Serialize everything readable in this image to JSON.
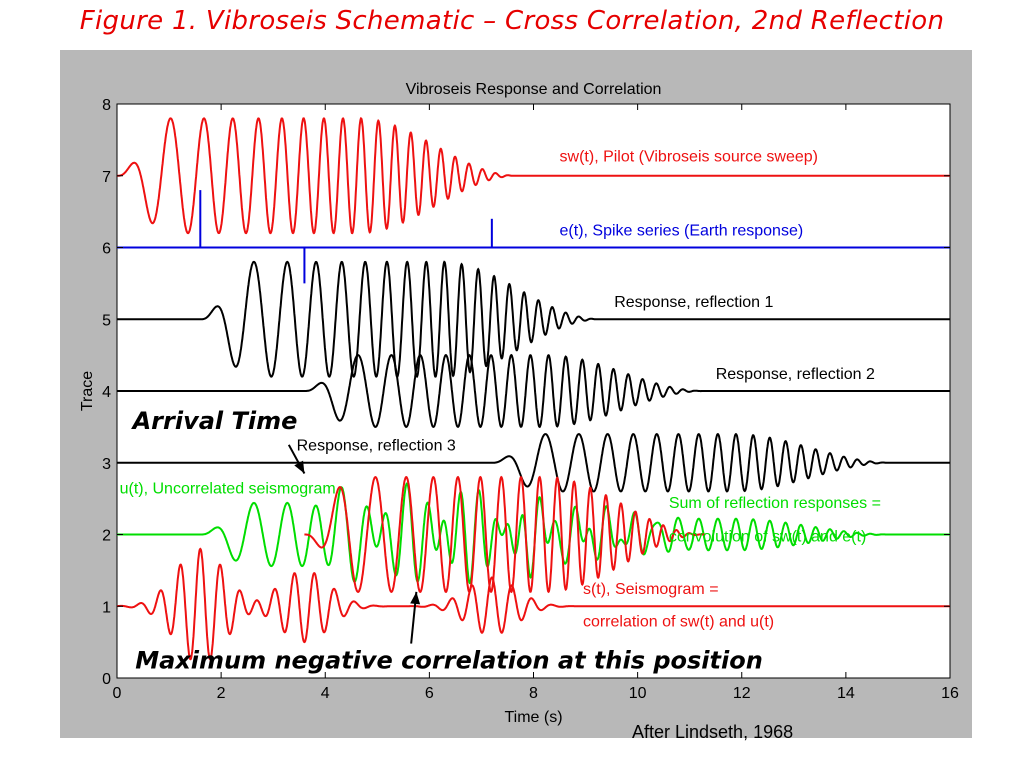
{
  "figure_title": "Figure 1.  Vibroseis Schematic – Cross Correlation, 2nd Reflection",
  "credit": "After Lindseth, 1968",
  "chart_data": {
    "type": "line",
    "title": "Vibroseis Response and Correlation",
    "xlabel": "Time (s)",
    "ylabel": "Trace",
    "xlim": [
      0,
      16
    ],
    "ylim": [
      0,
      8
    ],
    "xticks": [
      0,
      2,
      4,
      6,
      8,
      10,
      12,
      14,
      16
    ],
    "yticks": [
      0,
      1,
      2,
      3,
      4,
      5,
      6,
      7,
      8
    ],
    "grid": false,
    "colors": {
      "red": "#ee1111",
      "blue": "#0000dd",
      "black": "#000000",
      "green": "#00dd00"
    },
    "series": [
      {
        "name": "sw(t), Pilot (Vibroseis source sweep)",
        "baseline": 7,
        "color": "red",
        "kind": "sweep",
        "start": 0,
        "end": 7.7,
        "amplitude": 0.8,
        "cycles": 20
      },
      {
        "name": "e(t), Spike series (Earth response)",
        "baseline": 6,
        "color": "blue",
        "kind": "spikes",
        "spikes": [
          {
            "t": 1.6,
            "a": 0.8
          },
          {
            "t": 3.6,
            "a": -0.5
          },
          {
            "t": 7.2,
            "a": 0.4
          }
        ]
      },
      {
        "name": "Response, reflection 1",
        "baseline": 5,
        "color": "black",
        "kind": "sweep",
        "start": 1.6,
        "end": 9.3,
        "amplitude": 0.8,
        "cycles": 20
      },
      {
        "name": "Response, reflection 2",
        "baseline": 4,
        "color": "black",
        "kind": "sweep",
        "start": 3.6,
        "end": 11.3,
        "amplitude": 0.5,
        "cycles": 20
      },
      {
        "name": "Response, reflection 3",
        "baseline": 3,
        "color": "black",
        "kind": "sweep",
        "start": 7.2,
        "end": 14.9,
        "amplitude": 0.4,
        "cycles": 20
      },
      {
        "name": "u(t), Uncorrelated seismogram",
        "baseline": 2,
        "color": "green",
        "kind": "sum",
        "components": [
          {
            "start": 1.6,
            "amplitude": 0.8
          },
          {
            "start": 3.6,
            "amplitude": -0.5
          },
          {
            "start": 7.2,
            "amplitude": 0.4
          }
        ]
      },
      {
        "name": "s(t), Seismogram",
        "baseline": 1,
        "color": "red",
        "kind": "correlation",
        "peaks": [
          {
            "t": 1.6,
            "a": 0.8
          },
          {
            "t": 3.6,
            "a": -0.5
          },
          {
            "t": 7.2,
            "a": 0.4
          }
        ]
      },
      {
        "name": "",
        "baseline": 2,
        "color": "red",
        "kind": "sweep",
        "start": 3.6,
        "end": 11.3,
        "amplitude": 0.8,
        "cycles": 20,
        "inverted": true
      }
    ],
    "labels": [
      {
        "text": "sw(t), Pilot (Vibroseis source sweep)",
        "x": 8.5,
        "y": 7.2,
        "color": "red"
      },
      {
        "text": "e(t), Spike series (Earth response)",
        "x": 8.5,
        "y": 6.17,
        "color": "blue"
      },
      {
        "text": "Response, reflection 1",
        "x": 9.55,
        "y": 5.17,
        "color": "black"
      },
      {
        "text": "Response, reflection 2",
        "x": 11.5,
        "y": 4.17,
        "color": "black"
      },
      {
        "text": "Response, reflection 3",
        "x": 3.45,
        "y": 3.17,
        "color": "black"
      },
      {
        "text": "u(t), Uncorrelated seismogram",
        "x": 0.05,
        "y": 2.57,
        "color": "green"
      },
      {
        "text": "Sum of reflection responses =",
        "x": 10.6,
        "y": 2.37,
        "color": "green"
      },
      {
        "text": "convolution of sw(t) and e(t)",
        "x": 10.6,
        "y": 1.9,
        "color": "green"
      },
      {
        "text": "s(t), Seismogram =",
        "x": 8.95,
        "y": 1.17,
        "color": "red"
      },
      {
        "text": "correlation of sw(t) and u(t)",
        "x": 8.95,
        "y": 0.72,
        "color": "red"
      }
    ],
    "annotations": [
      {
        "text": "Arrival Time",
        "x": 0.3,
        "y": 3.47,
        "arrow_from": [
          3.3,
          3.25
        ],
        "arrow_to": [
          3.6,
          2.85
        ]
      },
      {
        "text": "Maximum negative correlation at this position",
        "x": 0.35,
        "y": 0.13,
        "arrow_from": [
          5.65,
          0.48
        ],
        "arrow_to": [
          5.75,
          1.2
        ]
      }
    ]
  }
}
